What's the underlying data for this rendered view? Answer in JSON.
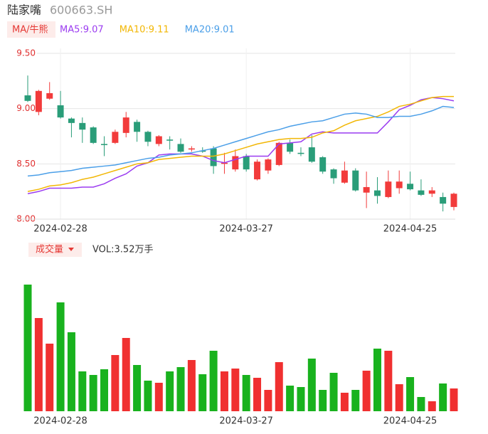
{
  "header": {
    "name": "陆家嘴",
    "code": "600663.SH"
  },
  "chart_data": [
    {
      "type": "candlestick",
      "indicator_label": "MA/牛熊",
      "categories": [
        null,
        null,
        null,
        "2024-02-28",
        null,
        null,
        null,
        null,
        null,
        null,
        null,
        null,
        null,
        null,
        null,
        null,
        null,
        null,
        null,
        null,
        "2024-03-27",
        null,
        null,
        null,
        null,
        null,
        null,
        null,
        null,
        null,
        null,
        null,
        null,
        null,
        null,
        "2024-04-25",
        null,
        null,
        null,
        null
      ],
      "open": [
        9.12,
        8.97,
        9.09,
        9.03,
        8.91,
        8.87,
        8.83,
        8.68,
        8.69,
        8.78,
        8.88,
        8.79,
        8.68,
        8.72,
        8.68,
        8.63,
        8.62,
        8.64,
        8.5,
        8.45,
        8.57,
        8.36,
        8.44,
        8.49,
        8.69,
        8.6,
        8.65,
        8.56,
        8.45,
        8.33,
        8.44,
        8.24,
        8.26,
        8.2,
        8.28,
        8.32,
        8.26,
        8.23,
        8.2,
        8.11
      ],
      "high": [
        9.3,
        9.17,
        9.24,
        9.16,
        8.92,
        8.92,
        8.84,
        8.75,
        8.81,
        8.97,
        8.9,
        8.8,
        8.76,
        8.75,
        8.73,
        8.66,
        8.65,
        8.66,
        8.6,
        8.63,
        8.59,
        8.54,
        8.55,
        8.7,
        8.72,
        8.65,
        8.76,
        8.57,
        8.46,
        8.52,
        8.46,
        8.43,
        8.38,
        8.44,
        8.44,
        8.43,
        8.36,
        8.29,
        8.24,
        8.24
      ],
      "low": [
        9.06,
        8.94,
        9.08,
        8.91,
        8.74,
        8.69,
        8.68,
        8.57,
        8.68,
        8.74,
        8.7,
        8.66,
        8.66,
        8.63,
        8.6,
        8.61,
        8.6,
        8.41,
        8.41,
        8.43,
        8.43,
        8.35,
        8.41,
        8.48,
        8.59,
        8.57,
        8.51,
        8.41,
        8.32,
        8.32,
        8.25,
        8.1,
        8.14,
        8.19,
        8.23,
        8.26,
        8.21,
        8.2,
        8.07,
        8.08
      ],
      "close": [
        9.07,
        9.16,
        9.14,
        8.92,
        8.87,
        8.81,
        8.69,
        8.67,
        8.79,
        8.92,
        8.79,
        8.7,
        8.75,
        8.71,
        8.61,
        8.64,
        8.61,
        8.48,
        8.51,
        8.57,
        8.45,
        8.52,
        8.54,
        8.69,
        8.61,
        8.59,
        8.52,
        8.43,
        8.37,
        8.44,
        8.26,
        8.29,
        8.21,
        8.34,
        8.34,
        8.27,
        8.22,
        8.26,
        8.14,
        8.23
      ],
      "up_color": "#f23b3b",
      "down_color": "#2a9d79",
      "series": [
        {
          "name": "MA5:9.07",
          "color": "#9b3cf0",
          "values": [
            8.23,
            8.25,
            8.28,
            8.28,
            8.28,
            8.29,
            8.29,
            8.32,
            8.37,
            8.41,
            8.48,
            8.51,
            8.58,
            8.59,
            8.59,
            8.59,
            8.57,
            8.53,
            8.51,
            8.54,
            8.57,
            8.57,
            8.57,
            8.68,
            8.69,
            8.7,
            8.77,
            8.79,
            8.78,
            8.78,
            8.78,
            8.78,
            8.78,
            8.88,
            8.99,
            9.03,
            9.08,
            9.1,
            9.09,
            9.07
          ]
        },
        {
          "name": "MA10:9.11",
          "color": "#f2b705",
          "values": [
            8.25,
            8.27,
            8.3,
            8.31,
            8.33,
            8.36,
            8.38,
            8.41,
            8.44,
            8.47,
            8.5,
            8.51,
            8.54,
            8.55,
            8.56,
            8.57,
            8.57,
            8.57,
            8.59,
            8.62,
            8.65,
            8.68,
            8.7,
            8.72,
            8.73,
            8.73,
            8.74,
            8.78,
            8.8,
            8.85,
            8.89,
            8.91,
            8.93,
            8.97,
            9.02,
            9.04,
            9.07,
            9.1,
            9.11,
            9.11
          ]
        },
        {
          "name": "MA20:9.01",
          "color": "#4b9fe8",
          "values": [
            8.39,
            8.4,
            8.42,
            8.43,
            8.44,
            8.46,
            8.47,
            8.48,
            8.49,
            8.51,
            8.53,
            8.55,
            8.56,
            8.58,
            8.59,
            8.6,
            8.62,
            8.64,
            8.67,
            8.7,
            8.73,
            8.76,
            8.79,
            8.81,
            8.84,
            8.86,
            8.88,
            8.89,
            8.92,
            8.95,
            8.96,
            8.95,
            8.92,
            8.92,
            8.93,
            8.93,
            8.95,
            8.98,
            9.02,
            9.01
          ]
        }
      ],
      "ylim": [
        8.0,
        9.5
      ],
      "yticks": [
        {
          "value": 9.5,
          "label": "9.50"
        },
        {
          "value": 9.0,
          "label": "9.00"
        },
        {
          "value": 8.5,
          "label": "8.50"
        },
        {
          "value": 8.0,
          "label": "8.00"
        }
      ],
      "tick_color": "#e03030",
      "grid": true
    },
    {
      "type": "bar",
      "indicator_label": "成交量",
      "value_label": "VOL:3.52万手",
      "categories": [
        null,
        null,
        null,
        "2024-02-28",
        null,
        null,
        null,
        null,
        null,
        null,
        null,
        null,
        null,
        null,
        null,
        null,
        null,
        null,
        null,
        null,
        "2024-03-27",
        null,
        null,
        null,
        null,
        null,
        null,
        null,
        null,
        null,
        null,
        null,
        null,
        null,
        null,
        "2024-04-25",
        null,
        null,
        null,
        null
      ],
      "values": [
        19.58,
        14.41,
        10.45,
        16.83,
        12.21,
        6.16,
        5.61,
        6.49,
        8.69,
        11.33,
        7.15,
        4.73,
        4.4,
        6.16,
        6.82,
        7.92,
        5.72,
        9.35,
        6.16,
        6.6,
        5.61,
        5.17,
        3.3,
        7.59,
        3.96,
        3.74,
        8.14,
        3.3,
        5.94,
        2.86,
        3.3,
        6.27,
        9.68,
        9.35,
        4.18,
        5.28,
        2.2,
        1.54,
        4.29,
        3.52
      ],
      "up_color": "#f03030",
      "down_color": "#19b21e"
    }
  ]
}
